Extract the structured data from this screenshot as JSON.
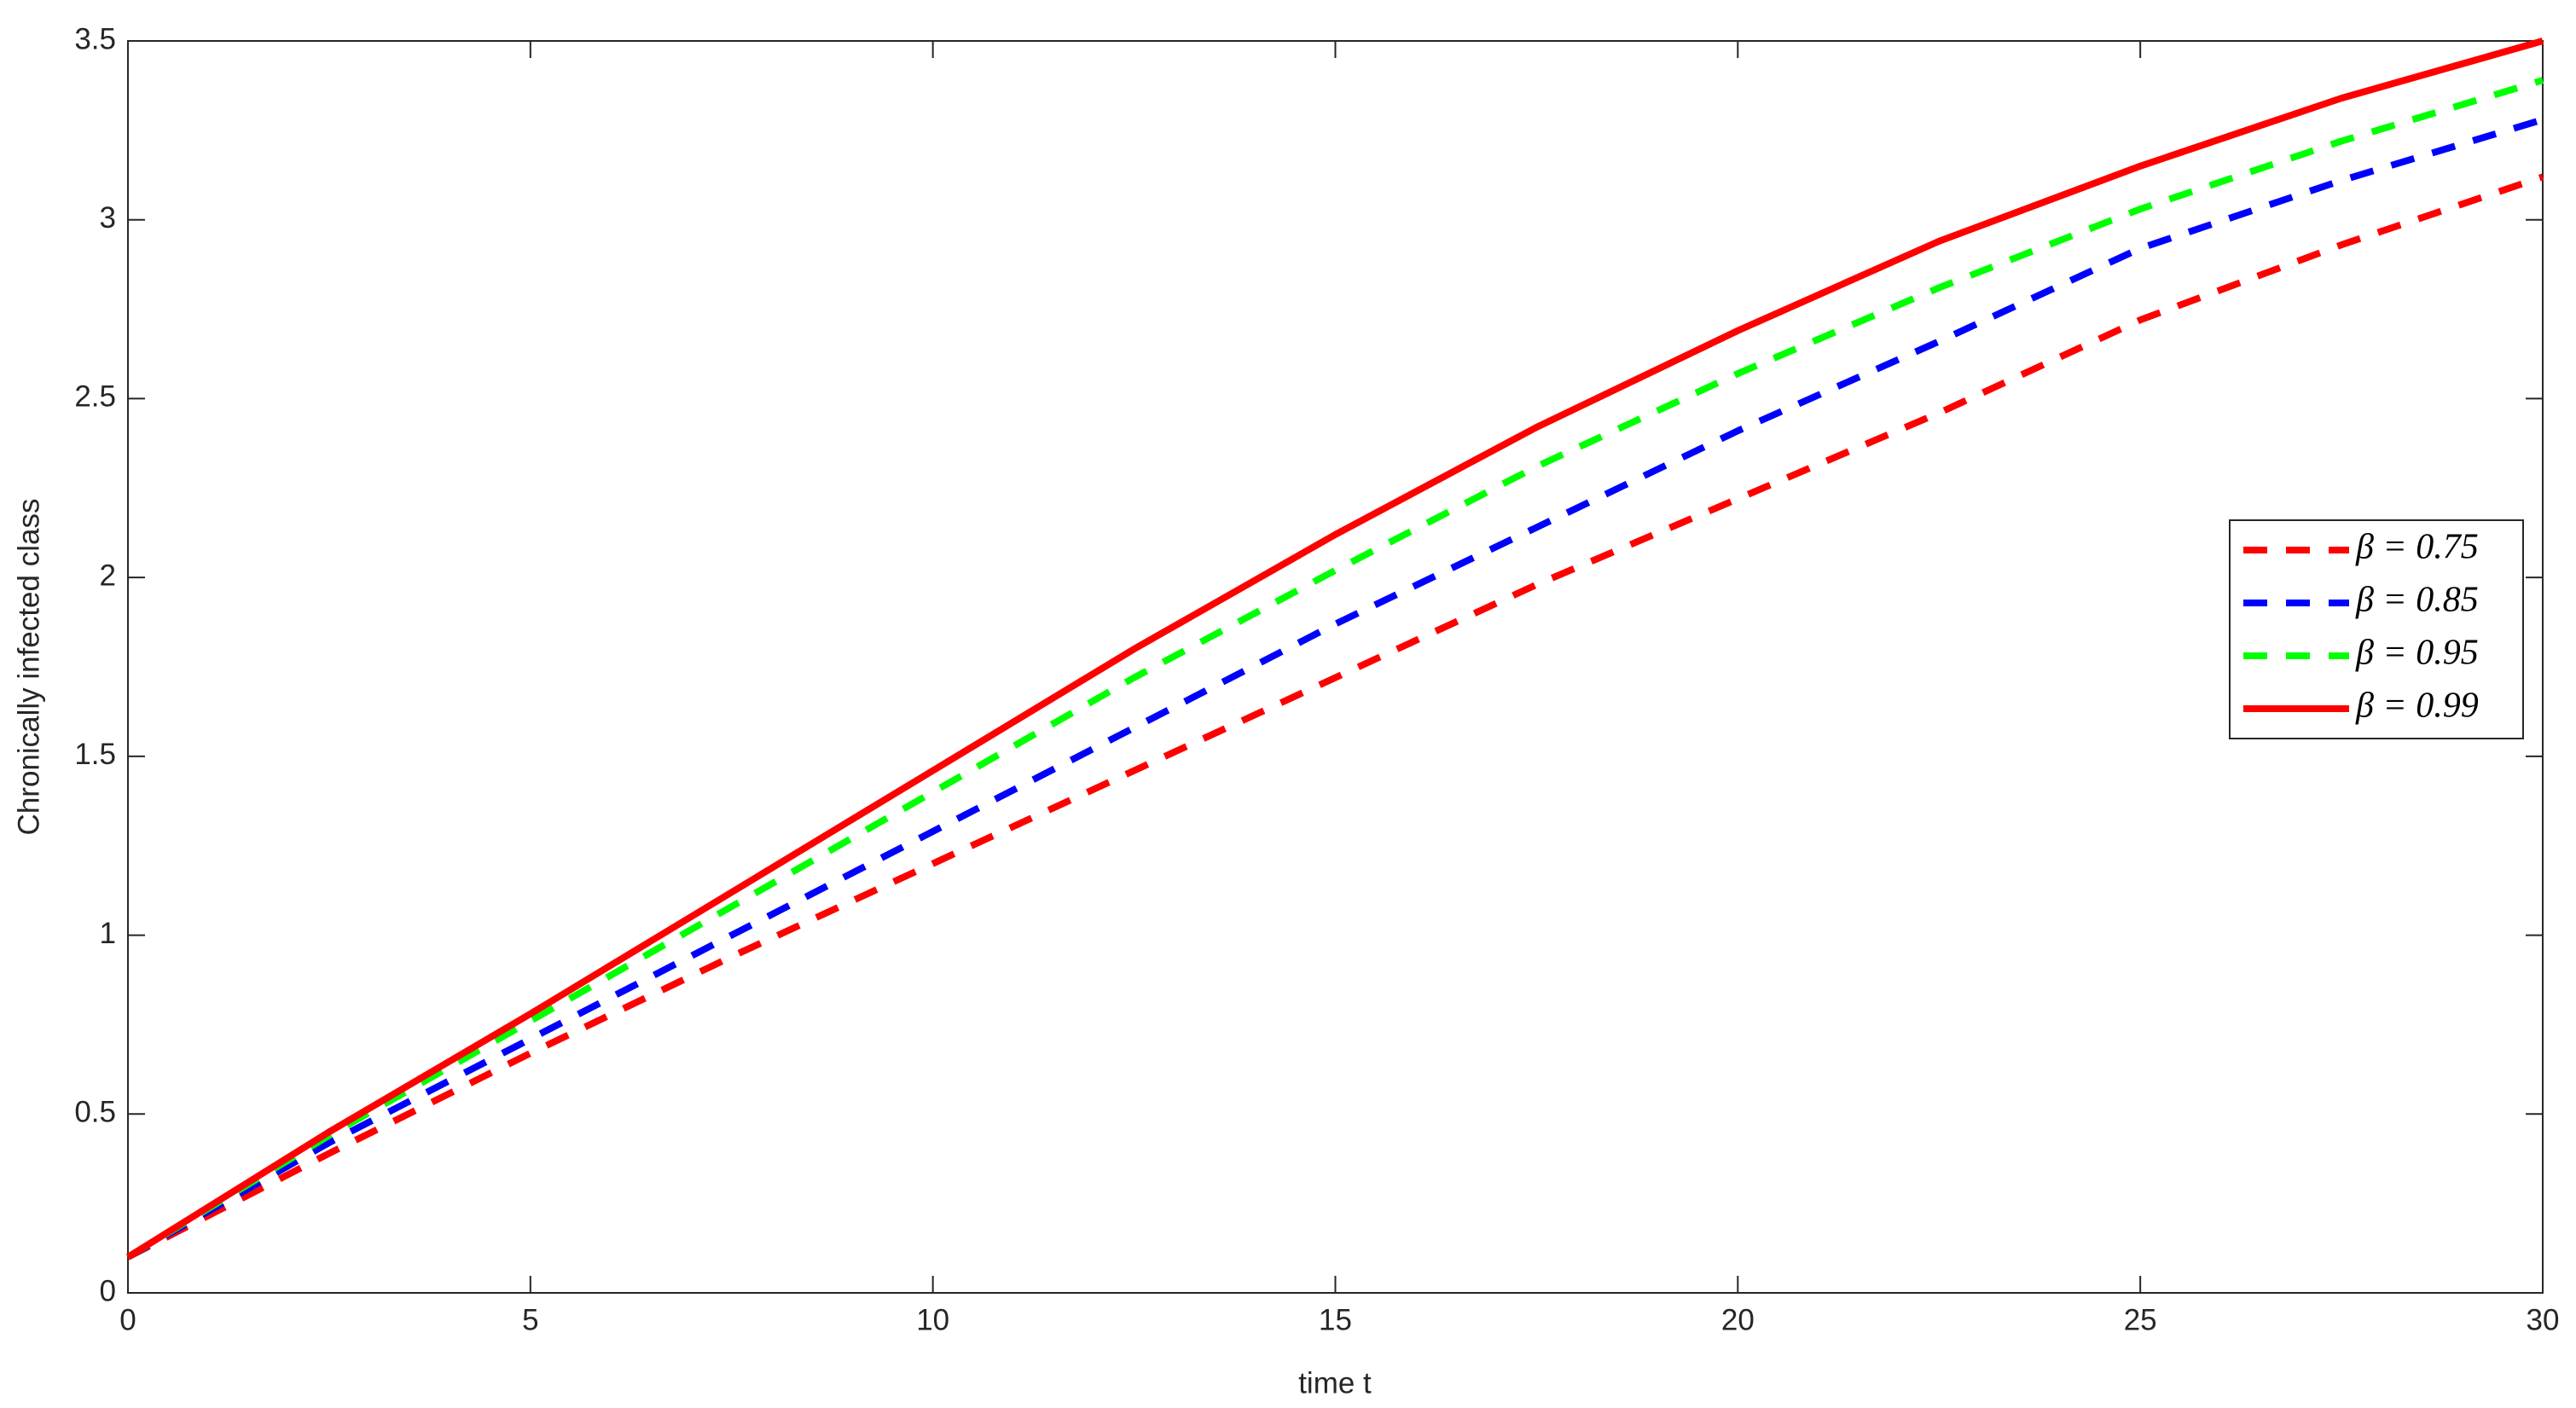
{
  "chart_data": {
    "type": "line",
    "xlabel": "time t",
    "ylabel": "Chronically infected class",
    "x": [
      0,
      2.5,
      5,
      7.5,
      10,
      12.5,
      15,
      17.5,
      20,
      22.5,
      25,
      27.5,
      30
    ],
    "series": [
      {
        "name": "β = 0.75",
        "color": "#ff0000",
        "dashed": true,
        "values": [
          0.1,
          0.39,
          0.67,
          0.94,
          1.2,
          1.46,
          1.72,
          1.98,
          2.22,
          2.46,
          2.72,
          2.93,
          3.12
        ]
      },
      {
        "name": "β = 0.85",
        "color": "#0000ff",
        "dashed": true,
        "values": [
          0.1,
          0.42,
          0.71,
          1.0,
          1.29,
          1.58,
          1.87,
          2.14,
          2.41,
          2.66,
          2.92,
          3.11,
          3.28
        ]
      },
      {
        "name": "β = 0.95",
        "color": "#00ff00",
        "dashed": true,
        "values": [
          0.1,
          0.44,
          0.76,
          1.08,
          1.4,
          1.72,
          2.02,
          2.31,
          2.57,
          2.81,
          3.03,
          3.22,
          3.39
        ]
      },
      {
        "name": "β = 0.99",
        "color": "#ff0000",
        "dashed": false,
        "values": [
          0.1,
          0.45,
          0.78,
          1.12,
          1.46,
          1.8,
          2.12,
          2.42,
          2.69,
          2.94,
          3.15,
          3.34,
          3.5
        ]
      }
    ],
    "xlim": [
      0,
      30
    ],
    "xticks": [
      0,
      5,
      10,
      15,
      20,
      25,
      30
    ],
    "ylim": [
      0,
      3.5
    ],
    "yticks": [
      0,
      0.5,
      1,
      1.5,
      2,
      2.5,
      3,
      3.5
    ],
    "legend": "right"
  }
}
